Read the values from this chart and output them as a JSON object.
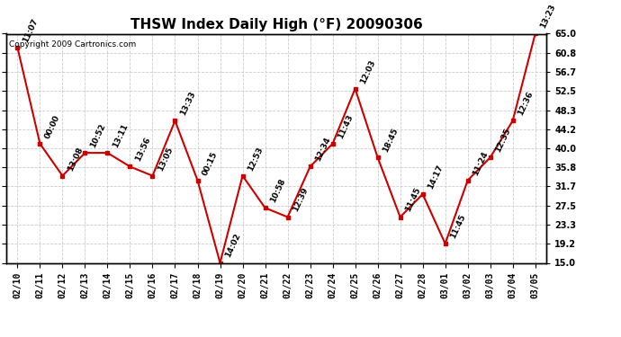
{
  "title": "THSW Index Daily High (°F) 20090306",
  "copyright": "Copyright 2009 Cartronics.com",
  "dates": [
    "02/10",
    "02/11",
    "02/12",
    "02/13",
    "02/14",
    "02/15",
    "02/16",
    "02/17",
    "02/18",
    "02/19",
    "02/20",
    "02/21",
    "02/22",
    "02/23",
    "02/24",
    "02/25",
    "02/26",
    "02/27",
    "02/28",
    "03/01",
    "03/02",
    "03/03",
    "03/04",
    "03/05"
  ],
  "values": [
    62.0,
    41.0,
    34.0,
    39.0,
    39.0,
    36.0,
    34.0,
    46.0,
    33.0,
    15.0,
    34.0,
    27.0,
    25.0,
    36.0,
    41.0,
    53.0,
    38.0,
    25.0,
    30.0,
    19.2,
    33.0,
    38.0,
    46.0,
    65.0
  ],
  "time_labels": [
    "11:07",
    "00:00",
    "13:08",
    "10:52",
    "13:11",
    "13:56",
    "13:05",
    "13:33",
    "00:15",
    "14:02",
    "12:53",
    "10:58",
    "12:39",
    "12:34",
    "11:43",
    "12:03",
    "18:45",
    "11:45",
    "14:17",
    "11:45",
    "11:24",
    "12:35",
    "12:36",
    "13:23"
  ],
  "ylim_min": 15.0,
  "ylim_max": 65.0,
  "yticks": [
    15.0,
    19.2,
    23.3,
    27.5,
    31.7,
    35.8,
    40.0,
    44.2,
    48.3,
    52.5,
    56.7,
    60.8,
    65.0
  ],
  "line_color": "#cc0000",
  "marker_color": "#cc0000",
  "bg_color": "#ffffff",
  "grid_color": "#cccccc",
  "title_fontsize": 11,
  "label_fontsize": 6.5,
  "tick_fontsize": 7,
  "copyright_fontsize": 6.5
}
